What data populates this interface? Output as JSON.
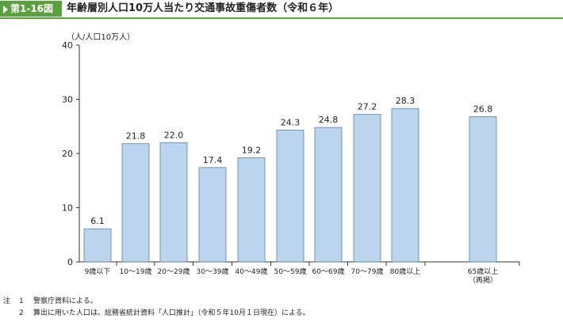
{
  "header": {
    "figure_label": "第1-16図",
    "title": "年齢層別人口10万人当たり交通事故重傷者数（令和６年）"
  },
  "chart_data": {
    "type": "bar",
    "ylabel": "（人/人口10万人）",
    "ylim": [
      0,
      40
    ],
    "yticks": [
      0,
      10,
      20,
      30,
      40
    ],
    "grid": false,
    "bar_color": "#bcd5ef",
    "bar_edge_color": "#5a7fa8",
    "categories": [
      [
        "9歳以下"
      ],
      [
        "10～19歳"
      ],
      [
        "20～29歳"
      ],
      [
        "30～39歳"
      ],
      [
        "40～49歳"
      ],
      [
        "50～59歳"
      ],
      [
        "60～69歳"
      ],
      [
        "70～79歳"
      ],
      [
        "80歳以上"
      ],
      [
        "65歳以上",
        "（再掲）"
      ]
    ],
    "values": [
      6.1,
      21.8,
      22.0,
      17.4,
      19.2,
      24.3,
      24.8,
      27.2,
      28.3,
      26.8
    ],
    "data_labels": [
      "6.1",
      "21.8",
      "22.0",
      "17.4",
      "19.2",
      "24.3",
      "24.8",
      "27.2",
      "28.3",
      "26.8"
    ]
  },
  "notes": [
    {
      "label": "注",
      "num": "1",
      "text": "警察庁資料による。"
    },
    {
      "label": "",
      "num": "2",
      "text": "算出に用いた人口は、総務省統計資料「人口推計」（令和５年10月１日現在）による。"
    }
  ]
}
